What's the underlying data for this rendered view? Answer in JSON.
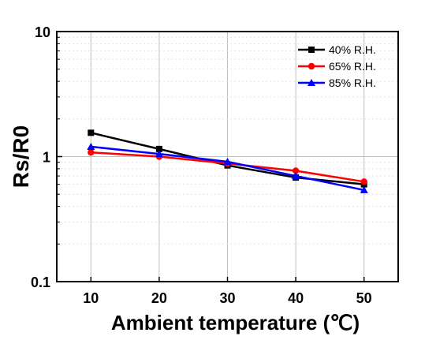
{
  "chart_data": {
    "type": "line",
    "xlabel": "Ambient temperature (℃)",
    "ylabel": "Rs/R0",
    "x": [
      10,
      20,
      30,
      40,
      50
    ],
    "xlim": [
      5,
      55
    ],
    "ylim": [
      0.1,
      10
    ],
    "yscale": "log",
    "x_ticks": [
      10,
      20,
      30,
      40,
      50
    ],
    "y_ticks": [
      0.1,
      1,
      10
    ],
    "y_tick_labels": [
      "0.1",
      "1",
      "10"
    ],
    "grid": true,
    "legend_position": "top-right",
    "series": [
      {
        "name": "40% R.H.",
        "color": "#000000",
        "marker": "square",
        "values": [
          1.55,
          1.15,
          0.85,
          0.68,
          0.6
        ]
      },
      {
        "name": "65% R.H.",
        "color": "#ff0000",
        "marker": "circle",
        "values": [
          1.08,
          1.0,
          0.88,
          0.77,
          0.63
        ]
      },
      {
        "name": "85% R.H.",
        "color": "#0000ff",
        "marker": "triangle",
        "values": [
          1.2,
          1.05,
          0.91,
          0.7,
          0.54
        ]
      }
    ]
  }
}
